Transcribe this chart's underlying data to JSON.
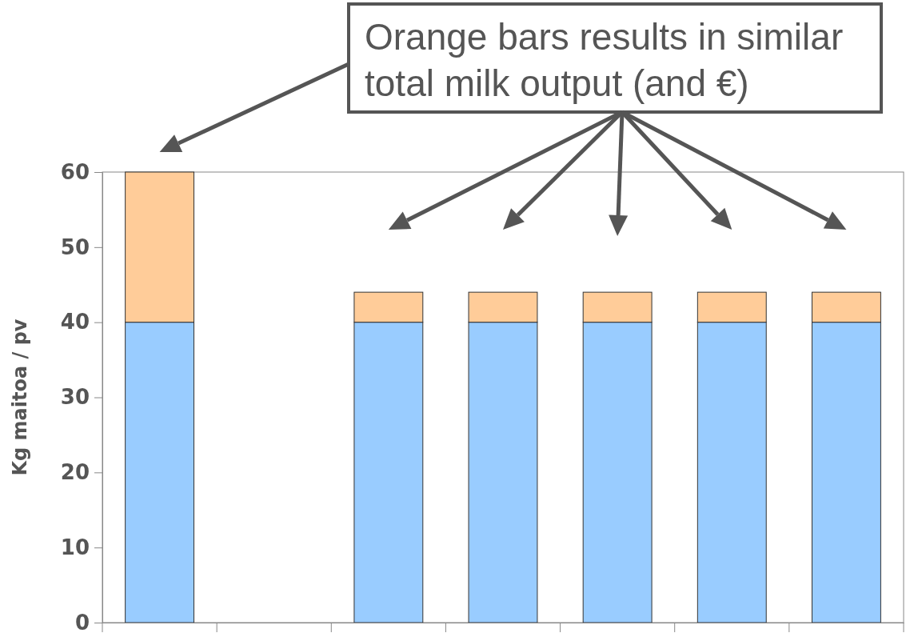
{
  "chart_data": {
    "type": "bar",
    "stacked": true,
    "ylabel": "Kg maitoa / pv",
    "categories": [
      null,
      null,
      null,
      null,
      null,
      null,
      null
    ],
    "series": [
      {
        "color": "#99ccff",
        "values": [
          40,
          null,
          40,
          40,
          40,
          40,
          40
        ]
      },
      {
        "color": "#ffcc99",
        "values": [
          20,
          null,
          4,
          4,
          4,
          4,
          4
        ]
      }
    ],
    "ylim": [
      0,
      60
    ],
    "yticks": [
      0,
      10,
      20,
      30,
      40,
      50,
      60
    ],
    "grid": false,
    "annotations": [
      "Orange bars results in similar total milk output (and €)"
    ]
  }
}
